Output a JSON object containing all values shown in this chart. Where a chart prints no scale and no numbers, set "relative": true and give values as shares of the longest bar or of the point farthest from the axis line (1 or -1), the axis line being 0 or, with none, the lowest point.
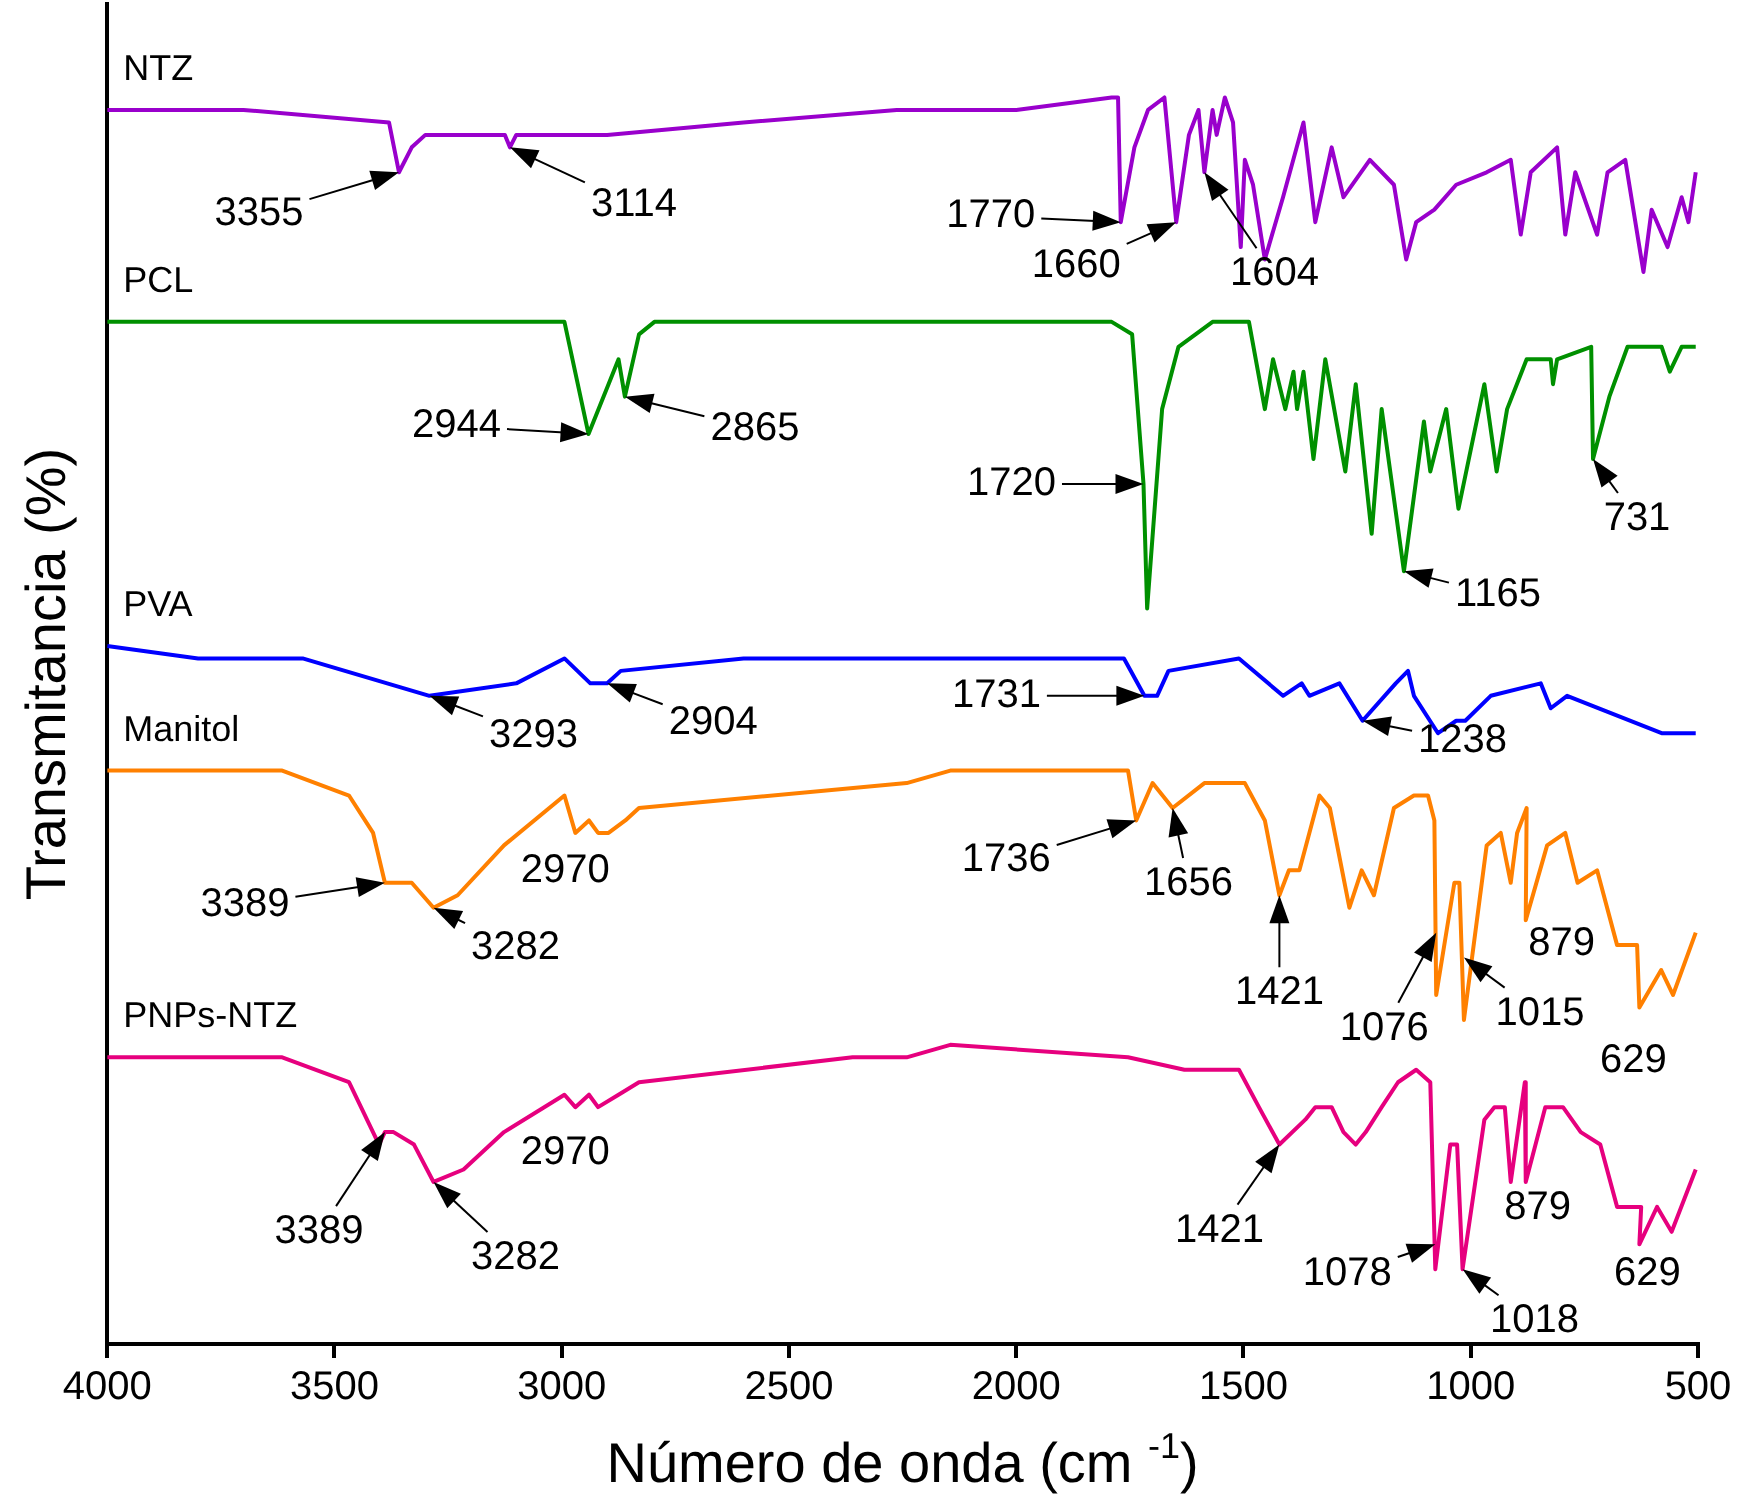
{
  "chart_data": {
    "type": "line",
    "relative": true,
    "xlabel": "Número de onda (cm $^{-1}$)",
    "ylabel": "Transmitancia (%)",
    "xlim": [
      4000,
      500
    ],
    "xticks": [
      4000,
      3500,
      3000,
      2500,
      2000,
      1500,
      1000,
      500
    ],
    "tick_labels": "x",
    "legend": false,
    "marker": "none",
    "line_style": "solid",
    "series": [
      {
        "name": "NTZ",
        "color": "#9900cc",
        "x": [
          4000,
          3700,
          3380,
          3358,
          3330,
          3300,
          3200,
          3125,
          3114,
          3100,
          2900,
          2600,
          2263,
          2000,
          1790,
          1776,
          1770,
          1740,
          1710,
          1674,
          1648,
          1620,
          1599,
          1586,
          1568,
          1559,
          1541,
          1523,
          1506,
          1497,
          1479,
          1453,
          1413,
          1368,
          1342,
          1306,
          1280,
          1222,
          1169,
          1142,
          1120,
          1080,
          1032,
          965,
          912,
          890,
          868,
          810,
          792,
          770,
          722,
          699,
          660,
          620,
          602,
          567,
          536,
          521,
          505
        ],
        "values": [
          0.99,
          0.99,
          0.98,
          0.94,
          0.96,
          0.97,
          0.97,
          0.97,
          0.96,
          0.97,
          0.97,
          0.98,
          0.99,
          0.99,
          1.0,
          1.0,
          0.9,
          0.96,
          0.99,
          1.0,
          0.9,
          0.97,
          0.99,
          0.94,
          0.99,
          0.97,
          1.0,
          0.98,
          0.88,
          0.95,
          0.93,
          0.87,
          0.92,
          0.98,
          0.9,
          0.96,
          0.92,
          0.95,
          0.93,
          0.87,
          0.9,
          0.91,
          0.93,
          0.94,
          0.95,
          0.89,
          0.94,
          0.96,
          0.89,
          0.94,
          0.89,
          0.94,
          0.95,
          0.86,
          0.91,
          0.88,
          0.92,
          0.9,
          0.94
        ]
      },
      {
        "name": "PCL",
        "color": "#009000",
        "x": [
          4000,
          3600,
          3430,
          3300,
          2994,
          2941,
          2897,
          2875,
          2861,
          2830,
          2796,
          2500,
          2263,
          2000,
          1790,
          1745,
          1720,
          1712,
          1679,
          1643,
          1568,
          1488,
          1453,
          1435,
          1408,
          1390,
          1382,
          1368,
          1346,
          1320,
          1276,
          1253,
          1218,
          1196,
          1147,
          1103,
          1089,
          1054,
          1027,
          970,
          943,
          920,
          877,
          824,
          819,
          810,
          735,
          731,
          695,
          655,
          580,
          562,
          536,
          505
        ],
        "values": [
          0.82,
          0.82,
          0.82,
          0.82,
          0.82,
          0.73,
          0.77,
          0.79,
          0.76,
          0.81,
          0.82,
          0.82,
          0.82,
          0.82,
          0.82,
          0.81,
          0.69,
          0.59,
          0.75,
          0.8,
          0.82,
          0.82,
          0.75,
          0.79,
          0.75,
          0.78,
          0.75,
          0.78,
          0.71,
          0.79,
          0.7,
          0.77,
          0.65,
          0.75,
          0.62,
          0.74,
          0.7,
          0.75,
          0.67,
          0.77,
          0.7,
          0.75,
          0.79,
          0.79,
          0.77,
          0.79,
          0.8,
          0.71,
          0.76,
          0.8,
          0.8,
          0.78,
          0.8,
          0.8
        ]
      },
      {
        "name": "PVA",
        "color": "#0000ff",
        "x": [
          4000,
          3800,
          3570,
          3291,
          3100,
          2994,
          2937,
          2900,
          2870,
          2600,
          2241,
          2000,
          1763,
          1718,
          1690,
          1665,
          1510,
          1413,
          1372,
          1355,
          1289,
          1238,
          1165,
          1138,
          1125,
          1072,
          1032,
          1012,
          956,
          846,
          824,
          788,
          580,
          505
        ],
        "values": [
          0.56,
          0.55,
          0.55,
          0.52,
          0.53,
          0.55,
          0.53,
          0.53,
          0.54,
          0.55,
          0.55,
          0.55,
          0.55,
          0.52,
          0.52,
          0.54,
          0.55,
          0.52,
          0.53,
          0.52,
          0.53,
          0.5,
          0.53,
          0.54,
          0.52,
          0.49,
          0.5,
          0.5,
          0.52,
          0.53,
          0.51,
          0.52,
          0.49,
          0.49
        ]
      },
      {
        "name": "Manitol",
        "color": "#ff8000",
        "x": [
          4000,
          3615,
          3468,
          3415,
          3389,
          3370,
          3330,
          3282,
          3229,
          3127,
          2994,
          2970,
          2940,
          2920,
          2897,
          2860,
          2830,
          2241,
          2145,
          1754,
          1736,
          1700,
          1656,
          1586,
          1497,
          1453,
          1421,
          1400,
          1377,
          1333,
          1310,
          1267,
          1240,
          1213,
          1169,
          1125,
          1094,
          1080,
          1076,
          1036,
          1025,
          1015,
          965,
          934,
          912,
          898,
          877,
          879,
          832,
          792,
          765,
          722,
          678,
          634,
          629,
          581,
          555,
          505
        ],
        "values": [
          0.46,
          0.46,
          0.44,
          0.41,
          0.37,
          0.37,
          0.37,
          0.35,
          0.36,
          0.4,
          0.44,
          0.41,
          0.42,
          0.41,
          0.41,
          0.42,
          0.43,
          0.45,
          0.46,
          0.46,
          0.42,
          0.45,
          0.43,
          0.45,
          0.45,
          0.42,
          0.36,
          0.38,
          0.38,
          0.44,
          0.43,
          0.35,
          0.38,
          0.36,
          0.43,
          0.44,
          0.44,
          0.42,
          0.28,
          0.37,
          0.37,
          0.26,
          0.4,
          0.41,
          0.37,
          0.41,
          0.43,
          0.34,
          0.4,
          0.41,
          0.37,
          0.38,
          0.32,
          0.32,
          0.27,
          0.3,
          0.28,
          0.33
        ]
      },
      {
        "name": "PNPs-NTZ",
        "color": "#e6007e",
        "x": [
          4000,
          3615,
          3468,
          3402,
          3389,
          3370,
          3325,
          3282,
          3216,
          3127,
          2994,
          2970,
          2940,
          2920,
          2875,
          2830,
          2360,
          2241,
          2145,
          1754,
          1630,
          1510,
          1466,
          1421,
          1364,
          1342,
          1306,
          1280,
          1253,
          1231,
          1196,
          1160,
          1120,
          1089,
          1078,
          1045,
          1030,
          1018,
          970,
          948,
          925,
          912,
          881,
          879,
          836,
          797,
          758,
          715,
          678,
          625,
          629,
          590,
          558,
          505
        ],
        "values": [
          0.23,
          0.23,
          0.21,
          0.16,
          0.17,
          0.17,
          0.16,
          0.13,
          0.14,
          0.17,
          0.2,
          0.19,
          0.2,
          0.19,
          0.2,
          0.21,
          0.23,
          0.23,
          0.24,
          0.23,
          0.22,
          0.22,
          0.19,
          0.16,
          0.18,
          0.19,
          0.19,
          0.17,
          0.16,
          0.17,
          0.19,
          0.21,
          0.22,
          0.21,
          0.06,
          0.16,
          0.16,
          0.06,
          0.18,
          0.19,
          0.19,
          0.13,
          0.21,
          0.13,
          0.19,
          0.19,
          0.17,
          0.16,
          0.11,
          0.11,
          0.08,
          0.11,
          0.09,
          0.14
        ]
      }
    ],
    "annotations": [
      {
        "text": "3355",
        "x": 3358,
        "y": 0.94
      },
      {
        "text": "3114",
        "x": 3114,
        "y": 0.96
      },
      {
        "text": "1770",
        "x": 1770,
        "y": 0.9
      },
      {
        "text": "1660",
        "x": 1648,
        "y": 0.9
      },
      {
        "text": "1604",
        "x": 1586,
        "y": 0.94
      },
      {
        "text": "2944",
        "x": 2941,
        "y": 0.73
      },
      {
        "text": "2865",
        "x": 2861,
        "y": 0.76
      },
      {
        "text": "1720",
        "x": 1720,
        "y": 0.69
      },
      {
        "text": "1165",
        "x": 1147,
        "y": 0.62
      },
      {
        "text": "731",
        "x": 731,
        "y": 0.71
      },
      {
        "text": "3293",
        "x": 3291,
        "y": 0.52
      },
      {
        "text": "2904",
        "x": 2900,
        "y": 0.53
      },
      {
        "text": "1731",
        "x": 1718,
        "y": 0.52
      },
      {
        "text": "1238",
        "x": 1238,
        "y": 0.5
      },
      {
        "text": "3389",
        "x": 3389,
        "y": 0.37
      },
      {
        "text": "3282",
        "x": 3282,
        "y": 0.35
      },
      {
        "text": "2970",
        "x": 2970,
        "y": 0.41
      },
      {
        "text": "1736",
        "x": 1736,
        "y": 0.42
      },
      {
        "text": "1656",
        "x": 1656,
        "y": 0.43
      },
      {
        "text": "1421",
        "x": 1421,
        "y": 0.36
      },
      {
        "text": "1076",
        "x": 1076,
        "y": 0.33
      },
      {
        "text": "1015",
        "x": 1015,
        "y": 0.31
      },
      {
        "text": "879",
        "x": 879,
        "y": 0.34
      },
      {
        "text": "629",
        "x": 629,
        "y": 0.27
      },
      {
        "text": "3389",
        "x": 3389,
        "y": 0.17
      },
      {
        "text": "3282",
        "x": 3282,
        "y": 0.13
      },
      {
        "text": "2970",
        "x": 2970,
        "y": 0.19
      },
      {
        "text": "1421",
        "x": 1421,
        "y": 0.16
      },
      {
        "text": "1078",
        "x": 1078,
        "y": 0.08
      },
      {
        "text": "1018",
        "x": 1018,
        "y": 0.06
      },
      {
        "text": "879",
        "x": 879,
        "y": 0.13
      },
      {
        "text": "629",
        "x": 629,
        "y": 0.08
      }
    ]
  }
}
